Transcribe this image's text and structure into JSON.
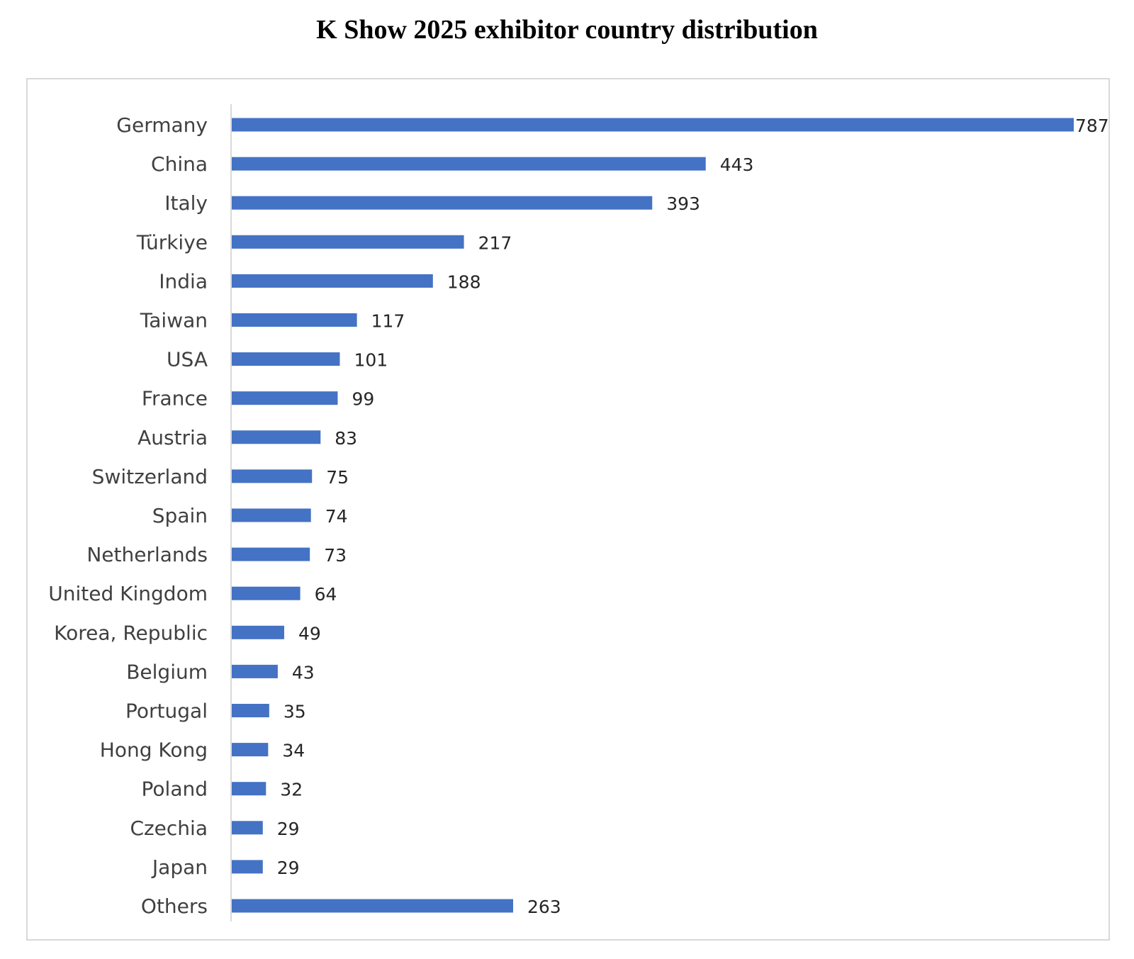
{
  "chart_data": {
    "type": "bar",
    "orientation": "horizontal",
    "title": "K Show 2025 exhibitor country distribution",
    "xlabel": "",
    "ylabel": "",
    "categories": [
      "Germany",
      "China",
      "Italy",
      "Türkiye",
      "India",
      "Taiwan",
      "USA",
      "France",
      "Austria",
      "Switzerland",
      "Spain",
      "Netherlands",
      "United Kingdom",
      "Korea, Republic",
      "Belgium",
      "Portugal",
      "Hong Kong",
      "Poland",
      "Czechia",
      "Japan",
      "Others"
    ],
    "values": [
      787,
      443,
      393,
      217,
      188,
      117,
      101,
      99,
      83,
      75,
      74,
      73,
      64,
      49,
      43,
      35,
      34,
      32,
      29,
      29,
      263
    ],
    "xlim": [
      0,
      787
    ],
    "grid": false,
    "legend": "none",
    "data_labels": true,
    "colors": {
      "bar": "#4472C4",
      "axis": "#d9d9d9",
      "frame": "#d9d9d9"
    }
  }
}
